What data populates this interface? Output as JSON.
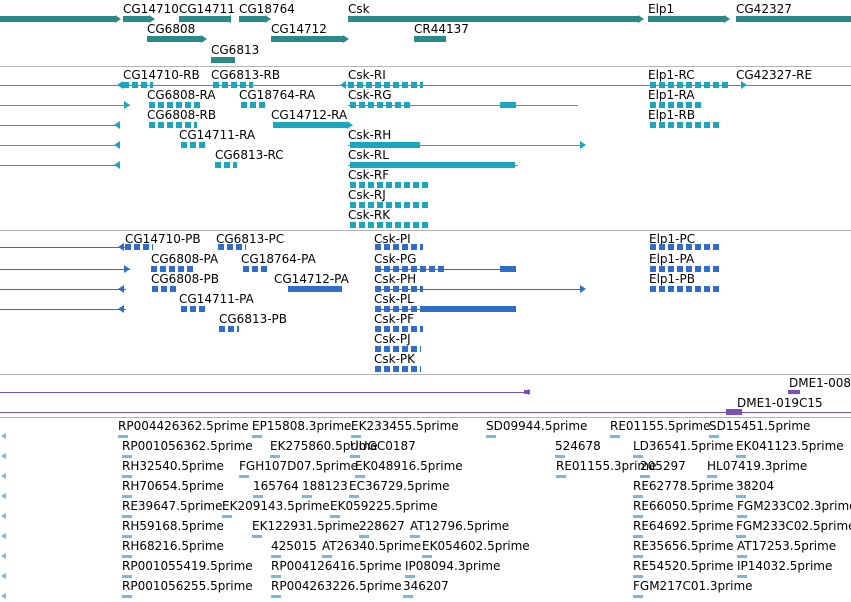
{
  "colors": {
    "genes": "#2a8a8a",
    "transcripts_a": "#1aa6bd",
    "transcripts_b": "#2f6dcc",
    "regulatory": "#7b4fb3",
    "est": "#7ab6dd",
    "separator": "#b4b4b4"
  },
  "gene_track": {
    "label_row1": [
      "CG14710",
      "CG14711",
      "CG18764",
      "Csk",
      "Elp1",
      "CG42327"
    ],
    "label_row2": [
      "CG6808",
      "CG14712",
      "CR44137"
    ],
    "label_row3": [
      "CG6813"
    ]
  },
  "transcript_track_a": {
    "labels": [
      "CG14710-RB",
      "CG6813-RB",
      "CG6808-RA",
      "CG18764-RA",
      "CG6808-RB",
      "CG14712-RA",
      "CG14711-RA",
      "CG6813-RC",
      "Csk-RI",
      "Csk-RG",
      "Csk-RH",
      "Csk-RL",
      "Csk-RF",
      "Csk-RJ",
      "Csk-RK",
      "Elp1-RC",
      "Elp1-RA",
      "Elp1-RB",
      "CG42327-RE"
    ]
  },
  "transcript_track_b": {
    "labels": [
      "CG14710-PB",
      "CG6813-PC",
      "CG6808-PA",
      "CG18764-PA",
      "CG6808-PB",
      "CG14712-PA",
      "CG14711-PA",
      "CG6813-PB",
      "Csk-PI",
      "Csk-PG",
      "Csk-PH",
      "Csk-PL",
      "Csk-PF",
      "Csk-PJ",
      "Csk-PK",
      "Elp1-PC",
      "Elp1-PA",
      "Elp1-PB"
    ]
  },
  "regulatory_track": {
    "labels": [
      "DME1-008",
      "DME1-019C15"
    ]
  },
  "est_track": {
    "labels": [
      "RP004426362.5prime",
      "EP15808.3prime",
      "EK233455.5prime",
      "SD09944.5prime",
      "RE01155.5prime",
      "SD15451.5prime",
      "RP001056362.5prime",
      "EK275860.5prime",
      "UUGC0187",
      "524678",
      "LD36541.5prime",
      "EK041123.5prime",
      "RH32540.5prime",
      "FGH107D07.5prime",
      "EK048916.5prime",
      "RE01155.3prime",
      "205297",
      "HL07419.3prime",
      "RH70654.5prime",
      "165764",
      "188123",
      "EC36729.5prime",
      "RE62778.5prime",
      "38204",
      "RE39647.5prime",
      "EK209143.5prime",
      "EK059225.5prime",
      "RE66050.5prime",
      "FGM233C02.3prime",
      "RH59168.5prime",
      "EK122931.5prime",
      "228627",
      "AT12796.5prime",
      "RE64692.5prime",
      "FGM233C02.5prime",
      "RH68216.5prime",
      "425015",
      "AT26340.5prime",
      "EK054602.5prime",
      "RE35656.5prime",
      "AT17253.5prime",
      "RP001055419.5prime",
      "RP004126416.5prime",
      "IP08094.3prime",
      "RE54520.5prime",
      "IP14032.5prime",
      "RP001056255.5prime",
      "RP004263226.5prime",
      "346207",
      "FGM217C01.3prime"
    ]
  }
}
